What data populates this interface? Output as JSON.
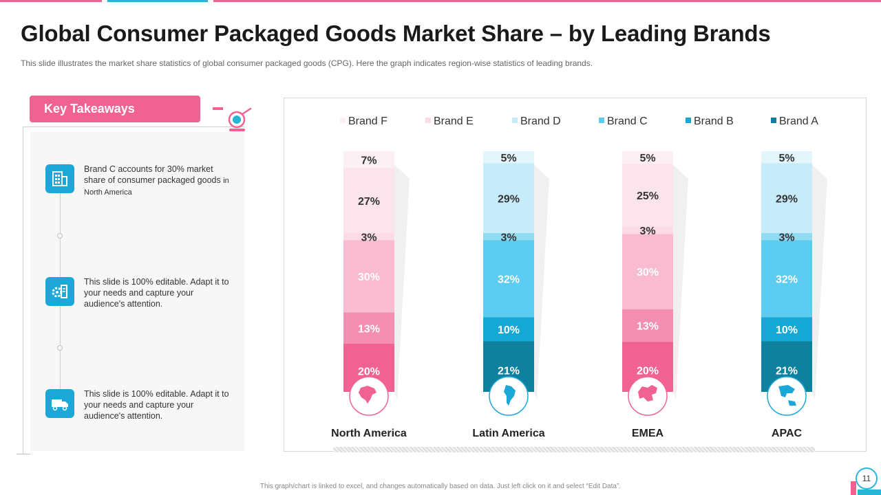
{
  "header": {
    "title": "Global Consumer Packaged Goods Market Share – by Leading Brands",
    "subtitle": "This slide illustrates the market share statistics of global consumer packaged goods (CPG). Here the graph indicates region-wise statistics of leading brands."
  },
  "takeaways": {
    "heading": "Key Takeaways",
    "items": [
      {
        "text": "Brand C accounts for 30% market share of consumer packaged goods",
        "small": "in North America",
        "icon": "building-icon"
      },
      {
        "text": "This slide is 100% editable. Adapt it to your needs and capture your audience's attention.",
        "small": "",
        "icon": "gear-document-icon"
      },
      {
        "text": "This slide is 100% editable. Adapt it to your needs and capture your audience's attention.",
        "small": "",
        "icon": "delivery-truck-icon"
      }
    ]
  },
  "chart_data": {
    "type": "bar",
    "stacked": true,
    "normalized": true,
    "categories": [
      "North America",
      "Latin America",
      "EMEA",
      "APAC"
    ],
    "series": [
      {
        "name": "Brand A",
        "values": [
          20,
          21,
          20,
          21
        ],
        "labels": [
          "20%",
          "21%",
          "20%",
          "21%"
        ]
      },
      {
        "name": "Brand B",
        "values": [
          13,
          10,
          13,
          10
        ],
        "labels": [
          "13%",
          "10%",
          "13%",
          "10%"
        ]
      },
      {
        "name": "Brand C",
        "values": [
          30,
          32,
          30,
          32
        ],
        "labels": [
          "30%",
          "32%",
          "30%",
          "32%"
        ]
      },
      {
        "name": "Brand D",
        "values": [
          3,
          3,
          3,
          3
        ],
        "labels": [
          "3%",
          "3%",
          "3%",
          "3%"
        ]
      },
      {
        "name": "Brand E",
        "values": [
          27,
          29,
          25,
          29
        ],
        "labels": [
          "27%",
          "29%",
          "25%",
          "29%"
        ]
      },
      {
        "name": "Brand F",
        "values": [
          7,
          5,
          5,
          5
        ],
        "labels": [
          "7%",
          "5%",
          "5%",
          "5%"
        ]
      }
    ],
    "legend_order": [
      "Brand F",
      "Brand E",
      "Brand D",
      "Brand C",
      "Brand B",
      "Brand A"
    ],
    "legend_position": "top",
    "palettes": {
      "pink": {
        "Brand A": "#f06292",
        "Brand B": "#f48fb1",
        "Brand C": "#f8bbd0",
        "Brand D": "#fadbe6",
        "Brand E": "#fce4ec",
        "Brand F": "#fdf0f4",
        "label_dark": "#333333",
        "label_light": "#ffffff",
        "ring": "#f06292"
      },
      "blue": {
        "Brand A": "#10809f",
        "Brand B": "#16a8d4",
        "Brand C": "#5ccdf0",
        "Brand D": "#92dcf3",
        "Brand E": "#c6ecfa",
        "Brand F": "#e2f6fc",
        "label_dark": "#333333",
        "label_light": "#ffffff",
        "ring": "#1ba7d8"
      }
    },
    "legend_colors": {
      "Brand F": "#fdf0f4",
      "Brand E": "#fadbe6",
      "Brand D": "#c6ecfa",
      "Brand C": "#5ccdf0",
      "Brand B": "#16a8d4",
      "Brand A": "#10809f"
    },
    "category_palette": [
      "pink",
      "blue",
      "pink",
      "blue"
    ],
    "category_icons": [
      "north-america-map-icon",
      "south-america-map-icon",
      "europe-map-icon",
      "asia-pacific-map-icon"
    ]
  },
  "footer": {
    "note": "This graph/chart is linked to excel, and changes automatically based on data. Just left click on it and select “Edit Data”.",
    "page_number": "11"
  }
}
